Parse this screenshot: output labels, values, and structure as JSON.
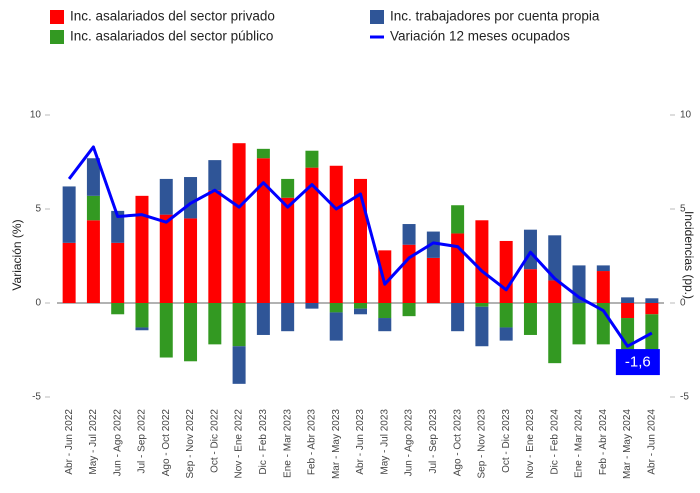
{
  "chart_data": {
    "type": "bar",
    "categories": [
      "Abr - Jun 2022",
      "May - Jul 2022",
      "Jun - Ago 2022",
      "Jul - Sep 2022",
      "Ago - Oct 2022",
      "Sep - Nov 2022",
      "Oct - Dic 2022",
      "Nov - Ene 2022",
      "Dic - Feb 2023",
      "Ene - Mar 2023",
      "Feb - Abr 2023",
      "Mar - May 2023",
      "Abr - Jun 2023",
      "May - Jul 2023",
      "Jun - Ago 2023",
      "Jul - Sep 2023",
      "Ago - Oct 2023",
      "Sep - Nov 2023",
      "Oct - Dic 2023",
      "Nov - Ene 2023",
      "Dic - Feb 2024",
      "Ene - Mar 2024",
      "Feb - Abr 2024",
      "Mar - May 2024",
      "Abr - Jun 2024"
    ],
    "series": [
      {
        "name": "Inc. asalariados del sector privado",
        "color": "#ff0000",
        "type": "bar",
        "values": [
          3.2,
          4.4,
          3.2,
          5.7,
          4.7,
          4.5,
          6.0,
          8.5,
          7.7,
          5.6,
          7.2,
          7.3,
          6.6,
          2.8,
          3.1,
          2.4,
          3.7,
          4.4,
          3.3,
          1.8,
          1.2,
          0,
          1.7,
          -0.8,
          -0.6
        ]
      },
      {
        "name": "Inc. asalariados del sector público",
        "color": "#339922",
        "type": "bar",
        "values": [
          0,
          1.3,
          -0.6,
          -1.3,
          -2.9,
          -3.1,
          -2.2,
          -2.3,
          0.5,
          1.0,
          0.9,
          -0.5,
          -0.3,
          -0.8,
          -0.7,
          0,
          1.5,
          -0.2,
          -1.3,
          -1.7,
          -3.2,
          -2.2,
          -2.2,
          -2.0,
          -2.0
        ]
      },
      {
        "name": "Inc. trabajadores por cuenta propia",
        "color": "#2f5597",
        "type": "bar",
        "values": [
          3.0,
          2.0,
          1.7,
          -0.15,
          1.9,
          2.2,
          1.6,
          -2.0,
          -1.7,
          -1.5,
          -0.3,
          -1.5,
          -0.3,
          -0.7,
          1.1,
          1.4,
          -1.5,
          -2.1,
          -0.7,
          2.1,
          2.4,
          2.0,
          0.3,
          0.3,
          0.25
        ]
      },
      {
        "name": "Variación 12 meses ocupados",
        "color": "#0000ff",
        "type": "line",
        "values": [
          6.6,
          8.3,
          4.6,
          4.7,
          4.3,
          5.3,
          6.0,
          5.1,
          6.4,
          5.1,
          6.3,
          5.0,
          5.8,
          1.0,
          2.4,
          3.2,
          3.0,
          1.7,
          0.7,
          2.7,
          1.3,
          0.3,
          -0.4,
          -2.3,
          -1.6
        ]
      }
    ],
    "y_label": "Variación (%)",
    "y2_label": "Incidencias (pp.)",
    "ylim": [
      -5,
      10
    ],
    "yticks": [
      -5,
      0,
      5,
      10
    ],
    "y2lim": [
      -5,
      10
    ],
    "y2ticks": [
      -5,
      0,
      5,
      10
    ],
    "annotation": "-1,6",
    "legend": "top"
  }
}
